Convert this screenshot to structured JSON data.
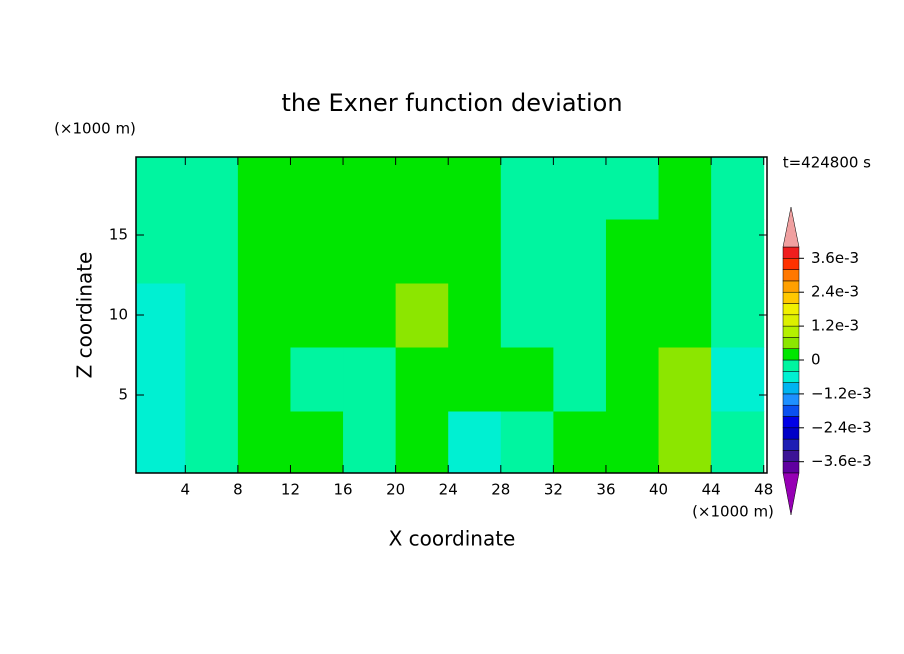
{
  "chart_data": {
    "type": "contour",
    "title": "the Exner function deviation",
    "x_label": "X coordinate",
    "y_label": "Z coordinate",
    "x_unit_label": "(×1000 m)",
    "y_unit_label": "(×1000 m)",
    "annotation": "t=424800 s",
    "x": [
      2,
      6,
      10,
      14,
      18,
      22,
      26,
      30,
      34,
      38,
      42,
      46
    ],
    "y": [
      2,
      6,
      10,
      14,
      18
    ],
    "z": [
      [
        -0.0006,
        -0.0002,
        0.0002,
        0.0002,
        -0.0002,
        0.0002,
        -0.0006,
        -0.0002,
        0.0002,
        0.0002,
        0.0006,
        -0.0002
      ],
      [
        -0.0006,
        -0.0002,
        0.0002,
        -0.0002,
        -0.0002,
        0.0002,
        0.0002,
        0.0002,
        -0.0002,
        0.0002,
        0.0006,
        -0.0006
      ],
      [
        -0.0006,
        -0.0002,
        0.0002,
        0.0002,
        0.0002,
        0.0006,
        0.0002,
        -0.0002,
        -0.0002,
        0.0002,
        0.0002,
        -0.0002
      ],
      [
        -0.0002,
        -0.0002,
        0.0002,
        0.0002,
        0.0002,
        0.0002,
        0.0002,
        -0.0002,
        -0.0002,
        0.0002,
        0.0002,
        -0.0002
      ],
      [
        -0.0002,
        -0.0002,
        0.0002,
        0.0002,
        0.0002,
        0.0002,
        0.0002,
        -0.0002,
        -0.0002,
        -0.0002,
        0.0002,
        -0.0002
      ]
    ],
    "xlim": [
      0.25,
      48.25
    ],
    "ylim": [
      0.125,
      19.875
    ],
    "xticks": [
      4,
      8,
      12,
      16,
      20,
      24,
      28,
      32,
      36,
      40,
      44,
      48
    ],
    "yticks": [
      5,
      10,
      15
    ],
    "levels": [
      -0.004,
      -0.0036,
      -0.0032,
      -0.0028,
      -0.0024,
      -0.002,
      -0.0016,
      -0.0012,
      -0.0008,
      -0.0004,
      0,
      0.0004,
      0.0008,
      0.0012,
      0.0016,
      0.002,
      0.0024,
      0.0028,
      0.0032,
      0.0036,
      0.004
    ],
    "colors": [
      "#6000a0",
      "#3c1496",
      "#1e1eb4",
      "#0000c8",
      "#0000e6",
      "#0a50f0",
      "#1e90ff",
      "#00b4f0",
      "#00f0d2",
      "#00f5a0",
      "#00e600",
      "#8ce600",
      "#b4f000",
      "#dcf000",
      "#f0f000",
      "#ffc800",
      "#ffa000",
      "#ff7800",
      "#ff3200",
      "#f01e1e"
    ],
    "under_color": "#9600b4",
    "over_color": "#f0a0a0",
    "colorbar_ticks": [
      {
        "value": 0.0036,
        "label": "3.6e-3"
      },
      {
        "value": 0.0024,
        "label": "2.4e-3"
      },
      {
        "value": 0.0012,
        "label": "1.2e-3"
      },
      0,
      {
        "value": -0.0012,
        "label": "−1.2e-3"
      },
      {
        "value": -0.0024,
        "label": "−2.4e-3"
      },
      {
        "value": -0.0036,
        "label": "−3.6e-3"
      }
    ]
  }
}
